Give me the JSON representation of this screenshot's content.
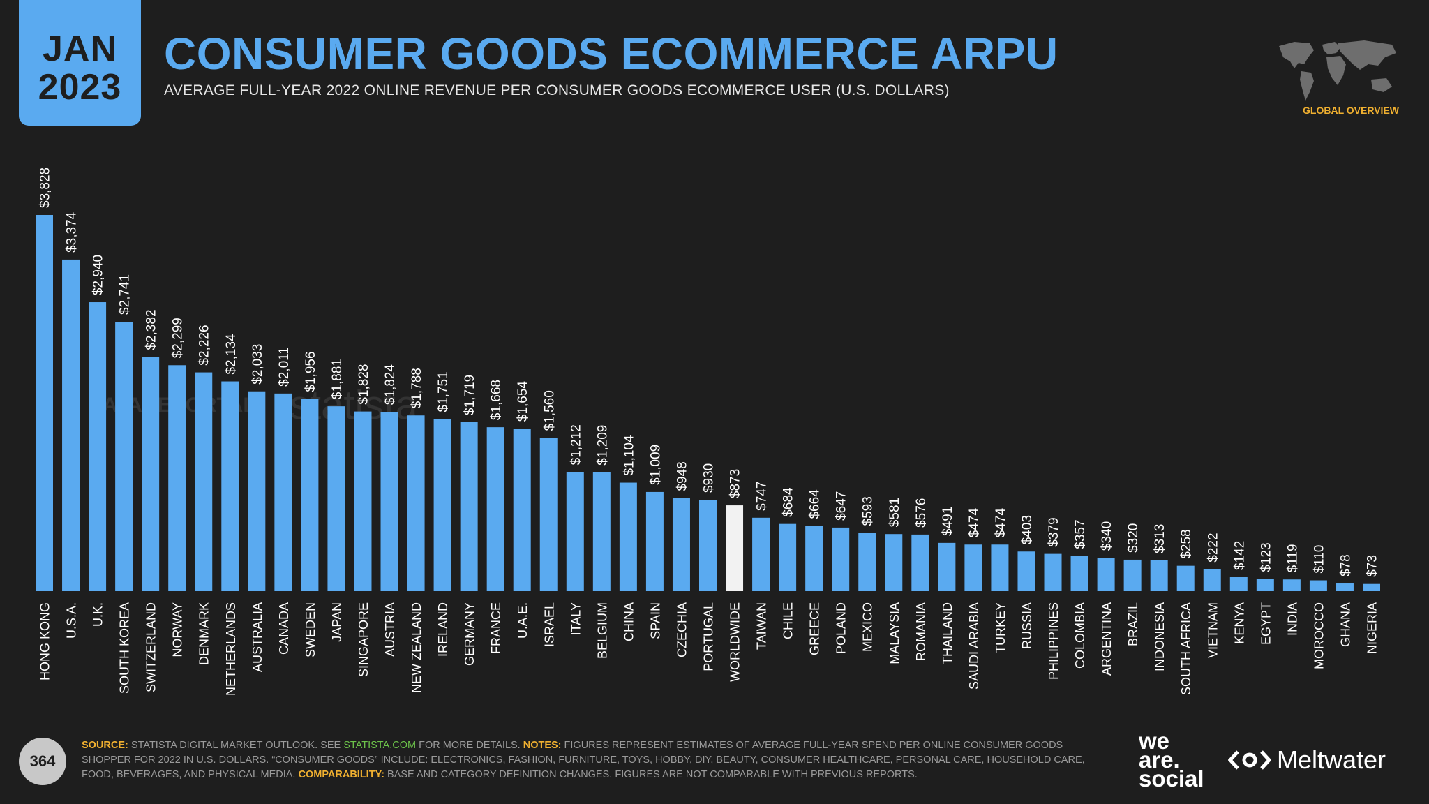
{
  "header": {
    "month": "JAN",
    "year": "2023",
    "title": "CONSUMER GOODS ECOMMERCE ARPU",
    "subtitle": "AVERAGE FULL-YEAR 2022 ONLINE REVENUE PER CONSUMER GOODS ECOMMERCE USER (U.S. DOLLARS)",
    "section": "GLOBAL OVERVIEW"
  },
  "colors": {
    "accent": "#5aaaf0",
    "highlight": "#f2f2f2",
    "background": "#1e1e1e",
    "label": "#f0b030"
  },
  "watermarks": [
    "DATAREPORTAL",
    "statista"
  ],
  "chart_data": {
    "type": "bar",
    "title": "CONSUMER GOODS ECOMMERCE ARPU",
    "ylabel": "U.S. DOLLARS",
    "xlabel": "",
    "ylim": [
      0,
      4100
    ],
    "highlight": "WORLDWIDE",
    "categories": [
      "HONG KONG",
      "U.S.A.",
      "U.K.",
      "SOUTH KOREA",
      "SWITZERLAND",
      "NORWAY",
      "DENMARK",
      "NETHERLANDS",
      "AUSTRALIA",
      "CANADA",
      "SWEDEN",
      "JAPAN",
      "SINGAPORE",
      "AUSTRIA",
      "NEW ZEALAND",
      "IRELAND",
      "GERMANY",
      "FRANCE",
      "U.A.E.",
      "ISRAEL",
      "ITALY",
      "BELGIUM",
      "CHINA",
      "SPAIN",
      "CZECHIA",
      "PORTUGAL",
      "WORLDWIDE",
      "TAIWAN",
      "CHILE",
      "GREECE",
      "POLAND",
      "MEXICO",
      "MALAYSIA",
      "ROMANIA",
      "THAILAND",
      "SAUDI ARABIA",
      "TURKEY",
      "RUSSIA",
      "PHILIPPINES",
      "COLOMBIA",
      "ARGENTINA",
      "BRAZIL",
      "INDONESIA",
      "SOUTH AFRICA",
      "VIETNAM",
      "KENYA",
      "EGYPT",
      "INDIA",
      "MOROCCO",
      "GHANA",
      "NIGERIA"
    ],
    "values": [
      3828,
      3374,
      2940,
      2741,
      2382,
      2299,
      2226,
      2134,
      2033,
      2011,
      1956,
      1881,
      1828,
      1824,
      1788,
      1751,
      1719,
      1668,
      1654,
      1560,
      1212,
      1209,
      1104,
      1009,
      948,
      930,
      873,
      747,
      684,
      664,
      647,
      593,
      581,
      576,
      491,
      474,
      474,
      403,
      379,
      357,
      340,
      320,
      313,
      258,
      222,
      142,
      123,
      119,
      110,
      78,
      73
    ],
    "labels": [
      "$3,828",
      "$3,374",
      "$2,940",
      "$2,741",
      "$2,382",
      "$2,299",
      "$2,226",
      "$2,134",
      "$2,033",
      "$2,011",
      "$1,956",
      "$1,881",
      "$1,828",
      "$1,824",
      "$1,788",
      "$1,751",
      "$1,719",
      "$1,668",
      "$1,654",
      "$1,560",
      "$1,212",
      "$1,209",
      "$1,104",
      "$1,009",
      "$948",
      "$930",
      "$873",
      "$747",
      "$684",
      "$664",
      "$647",
      "$593",
      "$581",
      "$576",
      "$491",
      "$474",
      "$474",
      "$403",
      "$379",
      "$357",
      "$340",
      "$320",
      "$313",
      "$258",
      "$222",
      "$142",
      "$123",
      "$119",
      "$110",
      "$78",
      "$73"
    ]
  },
  "footer": {
    "page": "364",
    "source_label": "SOURCE:",
    "source_text": " STATISTA DIGITAL MARKET OUTLOOK. SEE ",
    "source_link": "STATISTA.COM",
    "source_after": " FOR MORE DETAILS. ",
    "notes_label": "NOTES:",
    "notes_text": " FIGURES REPRESENT ESTIMATES OF AVERAGE FULL-YEAR SPEND PER ONLINE CONSUMER GOODS SHOPPER FOR 2022 IN U.S. DOLLARS. “CONSUMER GOODS” INCLUDE: ELECTRONICS, FASHION, FURNITURE, TOYS, HOBBY, DIY, BEAUTY, CONSUMER HEALTHCARE, PERSONAL CARE, HOUSEHOLD CARE, FOOD, BEVERAGES, AND PHYSICAL MEDIA. ",
    "comparability_label": "COMPARABILITY:",
    "comparability_text": " BASE AND CATEGORY DEFINITION CHANGES. FIGURES ARE NOT COMPARABLE WITH PREVIOUS REPORTS.",
    "brand_we": "we",
    "brand_are": "are.",
    "brand_social": "social",
    "brand_meltwater": "Meltwater"
  }
}
